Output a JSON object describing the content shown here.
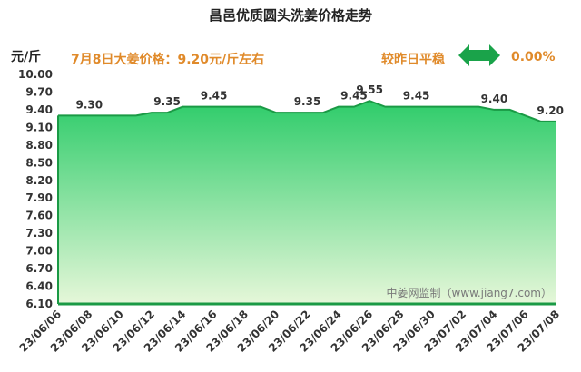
{
  "header": {
    "title": "昌邑优质圆头洗姜价格走势",
    "unit": "元/斤",
    "today_price": "7月8日大姜价格：9.20元/斤左右",
    "compare_label": "较昨日平稳",
    "change_value": "0.00%",
    "arrow_icon": "double-arrow-icon",
    "arrow_color": "#1aa34a"
  },
  "chart_data": {
    "type": "area",
    "x": [
      "23/06/06",
      "23/06/07",
      "23/06/08",
      "23/06/09",
      "23/06/10",
      "23/06/11",
      "23/06/12",
      "23/06/13",
      "23/06/14",
      "23/06/15",
      "23/06/16",
      "23/06/17",
      "23/06/18",
      "23/06/19",
      "23/06/20",
      "23/06/21",
      "23/06/22",
      "23/06/23",
      "23/06/24",
      "23/06/25",
      "23/06/26",
      "23/06/27",
      "23/06/28",
      "23/06/29",
      "23/06/30",
      "23/07/01",
      "23/07/02",
      "23/07/03",
      "23/07/04",
      "23/07/05",
      "23/07/06",
      "23/07/07",
      "23/07/08"
    ],
    "series": [
      {
        "values": [
          9.3,
          9.3,
          9.3,
          9.3,
          9.3,
          9.3,
          9.35,
          9.35,
          9.45,
          9.45,
          9.45,
          9.45,
          9.45,
          9.45,
          9.35,
          9.35,
          9.35,
          9.35,
          9.45,
          9.45,
          9.55,
          9.45,
          9.45,
          9.45,
          9.45,
          9.45,
          9.45,
          9.45,
          9.4,
          9.4,
          9.3,
          9.2,
          9.2
        ]
      }
    ],
    "x_ticks": [
      "23/06/06",
      "23/06/08",
      "23/06/10",
      "23/06/12",
      "23/06/14",
      "23/06/16",
      "23/06/18",
      "23/06/20",
      "23/06/22",
      "23/06/24",
      "23/06/26",
      "23/06/28",
      "23/06/30",
      "23/07/02",
      "23/07/04",
      "23/07/06",
      "23/07/08"
    ],
    "y_ticks": [
      "6.10",
      "6.40",
      "6.70",
      "7.00",
      "7.30",
      "7.60",
      "7.90",
      "8.20",
      "8.50",
      "8.80",
      "9.10",
      "9.40",
      "9.70",
      "10.00"
    ],
    "ylim": [
      6.1,
      10.0
    ],
    "data_labels": [
      {
        "x": "23/06/08",
        "y": 9.3,
        "text": "9.30"
      },
      {
        "x": "23/06/13",
        "y": 9.35,
        "text": "9.35"
      },
      {
        "x": "23/06/16",
        "y": 9.45,
        "text": "9.45"
      },
      {
        "x": "23/06/22",
        "y": 9.35,
        "text": "9.35"
      },
      {
        "x": "23/06/25",
        "y": 9.45,
        "text": "9.45"
      },
      {
        "x": "23/06/26",
        "y": 9.55,
        "text": "9.55"
      },
      {
        "x": "23/06/29",
        "y": 9.45,
        "text": "9.45"
      },
      {
        "x": "23/07/04",
        "y": 9.4,
        "text": "9.40"
      },
      {
        "x": "23/07/08",
        "y": 9.2,
        "text": "9.20"
      }
    ],
    "watermark": "中姜网监制（www.jiang7.com）",
    "grid": false,
    "colors": {
      "line": "#1a9a45",
      "fill_top": "#2ecc6a",
      "fill_bottom": "#e6f7d9",
      "axis": "#1a9a45"
    }
  }
}
